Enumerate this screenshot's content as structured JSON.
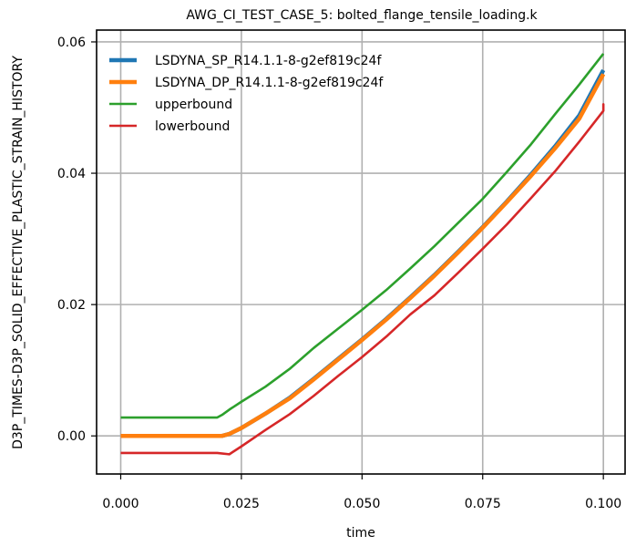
{
  "chart_data": {
    "type": "line",
    "title": "AWG_CI_TEST_CASE_5: bolted_flange_tensile_loading.k",
    "xlabel": "time",
    "ylabel": "D3P_TIMES-D3P_SOLID_EFFECTIVE_PLASTIC_STRAIN_HISTORY",
    "xlim": [
      -0.005,
      0.1045
    ],
    "ylim": [
      -0.0058,
      0.0618
    ],
    "xticks": [
      0.0,
      0.025,
      0.05,
      0.075,
      0.1
    ],
    "xtick_labels": [
      "0.000",
      "0.025",
      "0.050",
      "0.075",
      "0.100"
    ],
    "yticks": [
      0.0,
      0.02,
      0.04,
      0.06
    ],
    "ytick_labels": [
      "0.00",
      "0.02",
      "0.04",
      "0.06"
    ],
    "grid": true,
    "legend_position": "top-left",
    "series": [
      {
        "name": "LSDYNA_SP_R14.1.1-8-g2ef819c24f",
        "color": "#1f77b4",
        "x": [
          0.0,
          0.021,
          0.0225,
          0.025,
          0.03,
          0.035,
          0.04,
          0.045,
          0.05,
          0.055,
          0.06,
          0.065,
          0.07,
          0.075,
          0.08,
          0.085,
          0.09,
          0.095,
          0.1
        ],
        "y": [
          0.0,
          0.0,
          0.0003,
          0.0012,
          0.0034,
          0.0058,
          0.0087,
          0.0117,
          0.0147,
          0.0178,
          0.0211,
          0.0245,
          0.0281,
          0.0318,
          0.0357,
          0.0398,
          0.0441,
          0.0488,
          0.0557
        ]
      },
      {
        "name": "LSDYNA_DP_R14.1.1-8-g2ef819c24f",
        "color": "#ff7f0e",
        "x": [
          0.0,
          0.021,
          0.0225,
          0.025,
          0.03,
          0.035,
          0.04,
          0.045,
          0.05,
          0.055,
          0.06,
          0.065,
          0.07,
          0.075,
          0.08,
          0.085,
          0.09,
          0.095,
          0.1
        ],
        "y": [
          0.0,
          0.0,
          0.0003,
          0.0012,
          0.0034,
          0.0057,
          0.0086,
          0.0116,
          0.0146,
          0.0177,
          0.021,
          0.0244,
          0.028,
          0.0317,
          0.0356,
          0.0396,
          0.0438,
          0.0483,
          0.0551
        ]
      },
      {
        "name": "upperbound",
        "color": "#2ca02c",
        "x": [
          0.0,
          0.02,
          0.021,
          0.0225,
          0.025,
          0.03,
          0.035,
          0.04,
          0.045,
          0.05,
          0.055,
          0.06,
          0.065,
          0.07,
          0.075,
          0.08,
          0.085,
          0.09,
          0.095,
          0.1
        ],
        "y": [
          0.0028,
          0.0028,
          0.0032,
          0.004,
          0.0052,
          0.0075,
          0.0102,
          0.0134,
          0.0163,
          0.0192,
          0.0222,
          0.0255,
          0.0289,
          0.0325,
          0.0361,
          0.0402,
          0.0444,
          0.049,
          0.0535,
          0.0582
        ]
      },
      {
        "name": "lowerbound",
        "color": "#d62728",
        "x": [
          0.0,
          0.02,
          0.0225,
          0.025,
          0.03,
          0.035,
          0.04,
          0.045,
          0.05,
          0.055,
          0.06,
          0.065,
          0.07,
          0.075,
          0.08,
          0.085,
          0.09,
          0.095,
          0.1,
          0.1,
          0.1
        ],
        "y": [
          -0.0026,
          -0.0026,
          -0.0028,
          -0.0016,
          0.0009,
          0.0033,
          0.0061,
          0.0091,
          0.012,
          0.0151,
          0.0185,
          0.0214,
          0.0249,
          0.0285,
          0.0322,
          0.0362,
          0.0403,
          0.0448,
          0.0495,
          0.0505,
          0.0495
        ]
      }
    ]
  }
}
